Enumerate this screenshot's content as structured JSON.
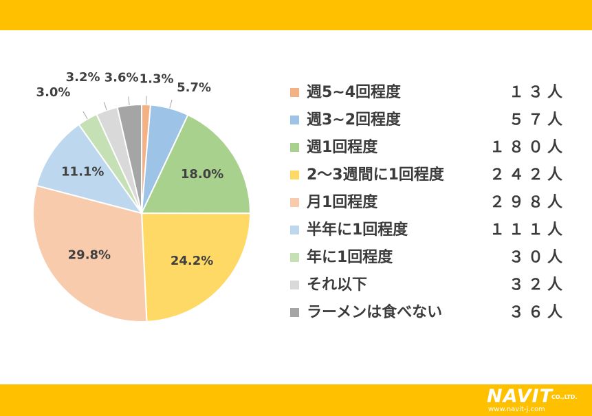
{
  "colors": {
    "band": "#ffc000",
    "slices": [
      "#f4b183",
      "#9dc3e6",
      "#a9d18e",
      "#ffd966",
      "#f8cbad",
      "#bdd7ee",
      "#c5e0b4",
      "#d9d9d9",
      "#a5a5a5"
    ]
  },
  "chart_data": {
    "type": "pie",
    "categories": [
      "週5~4回程度",
      "週3~2回程度",
      "週1回程度",
      "2～3週間に1回程度",
      "月1回程度",
      "半年に1回程度",
      "年に1回程度",
      "それ以下",
      "ラーメンは食べない"
    ],
    "values": [
      1.3,
      5.7,
      18.0,
      24.2,
      29.8,
      11.1,
      3.0,
      3.2,
      3.6
    ],
    "data_labels": [
      "1.3%",
      "5.7%",
      "18.0%",
      "24.2%",
      "29.8%",
      "11.1%",
      "3.0%",
      "3.2%",
      "3.6%"
    ],
    "counts": [
      "１３人",
      "５７人",
      "１８０人",
      "２４２人",
      "２９８人",
      "１１１人",
      "３０人",
      "３２人",
      "３６人"
    ],
    "legend_position": "right",
    "start_angle_deg": 0,
    "direction": "clockwise"
  },
  "logo": {
    "text": "NAVIT",
    "suffix": "CO.,LTD.",
    "url": "www.navit-j.com"
  }
}
